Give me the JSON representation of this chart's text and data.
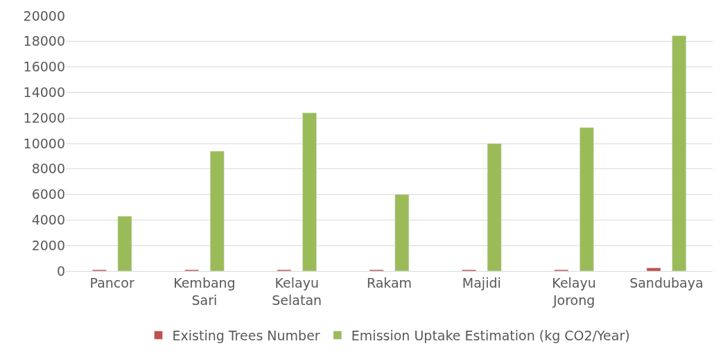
{
  "chart_data": {
    "type": "bar",
    "categories": [
      "Pancor",
      "Kembang Sari",
      "Kelayu Selatan",
      "Rakam",
      "Majidi",
      "Kelayu Jorong",
      "Sandubaya"
    ],
    "series": [
      {
        "name": "Existing Trees Number",
        "color": "#c0504d",
        "values": [
          100,
          100,
          100,
          100,
          100,
          100,
          250
        ]
      },
      {
        "name": "Emission Uptake Estimation (kg CO2/Year)",
        "color": "#9bbb59",
        "values": [
          4300,
          9400,
          12400,
          6000,
          10000,
          11250,
          18450
        ]
      }
    ],
    "ylim": [
      0,
      20000
    ],
    "yticks": [
      0,
      2000,
      4000,
      6000,
      8000,
      10000,
      12000,
      14000,
      16000,
      18000,
      20000
    ],
    "grid": "y",
    "legend": "bottom"
  }
}
